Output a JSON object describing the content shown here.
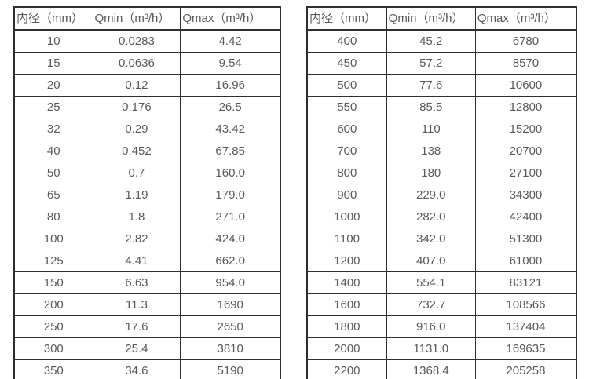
{
  "colors": {
    "background": "#ffffff",
    "table_border": "#2f2f2f",
    "text": "#595959"
  },
  "tables": [
    {
      "name": "flow-rate-table-small-diameters",
      "headers": [
        "内径（mm）",
        "Qmin（m³/h）",
        "Qmax（m³/h）"
      ],
      "rows": [
        [
          "10",
          "0.0283",
          "4.42"
        ],
        [
          "15",
          "0.0636",
          "9.54"
        ],
        [
          "20",
          "0.12",
          "16.96"
        ],
        [
          "25",
          "0.176",
          "26.5"
        ],
        [
          "32",
          "0.29",
          "43.42"
        ],
        [
          "40",
          "0.452",
          "67.85"
        ],
        [
          "50",
          "0.7",
          "160.0"
        ],
        [
          "65",
          "1.19",
          "179.0"
        ],
        [
          "80",
          "1.8",
          "271.0"
        ],
        [
          "100",
          "2.82",
          "424.0"
        ],
        [
          "125",
          "4.41",
          "662.0"
        ],
        [
          "150",
          "6.63",
          "954.0"
        ],
        [
          "200",
          "11.3",
          "1690"
        ],
        [
          "250",
          "17.6",
          "2650"
        ],
        [
          "300",
          "25.4",
          "3810"
        ],
        [
          "350",
          "34.6",
          "5190"
        ]
      ]
    },
    {
      "name": "flow-rate-table-large-diameters",
      "headers": [
        "内径（mm）",
        "Qmin（m³/h）",
        "Qmax（m³/h）"
      ],
      "rows": [
        [
          "400",
          "45.2",
          "6780"
        ],
        [
          "450",
          "57.2",
          "8570"
        ],
        [
          "500",
          "77.6",
          "10600"
        ],
        [
          "550",
          "85.5",
          "12800"
        ],
        [
          "600",
          "110",
          "15200"
        ],
        [
          "700",
          "138",
          "20700"
        ],
        [
          "800",
          "180",
          "27100"
        ],
        [
          "900",
          "229.0",
          "34300"
        ],
        [
          "1000",
          "282.0",
          "42400"
        ],
        [
          "1100",
          "342.0",
          "51300"
        ],
        [
          "1200",
          "407.0",
          "61000"
        ],
        [
          "1400",
          "554.1",
          "83121"
        ],
        [
          "1600",
          "732.7",
          "108566"
        ],
        [
          "1800",
          "916.0",
          "137404"
        ],
        [
          "2000",
          "1131.0",
          "169635"
        ],
        [
          "2200",
          "1368.4",
          "205258"
        ]
      ]
    }
  ]
}
